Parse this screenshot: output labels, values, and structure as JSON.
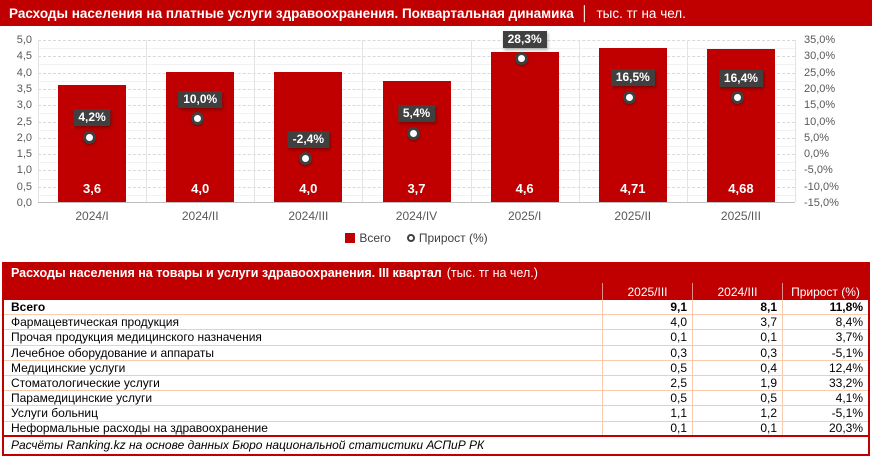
{
  "header": {
    "title_bold": "Расходы населения на платные услуги здравоохранения. Поквартальная динамика",
    "separator": "│",
    "unit": "тыс. тг на чел."
  },
  "chart_data": {
    "type": "bar",
    "categories": [
      "2024/I",
      "2024/II",
      "2024/III",
      "2024/IV",
      "2025/I",
      "2025/II",
      "2025/III"
    ],
    "series": [
      {
        "name": "Всего",
        "type": "bar",
        "axis": "left",
        "values": [
          3.6,
          4.0,
          4.0,
          3.7,
          4.6,
          4.71,
          4.68
        ],
        "labels": [
          "3,6",
          "4,0",
          "4,0",
          "3,7",
          "4,6",
          "4,71",
          "4,68"
        ]
      },
      {
        "name": "Прирост (%)",
        "type": "point",
        "axis": "right",
        "values": [
          4.2,
          10.0,
          -2.4,
          5.4,
          28.3,
          16.5,
          16.4
        ],
        "labels": [
          "4,2%",
          "10,0%",
          "-2,4%",
          "5,4%",
          "28,3%",
          "16,5%",
          "16,4%"
        ]
      }
    ],
    "left_axis": {
      "min": 0,
      "max": 5,
      "ticks": [
        "5,0",
        "4,5",
        "4,0",
        "3,5",
        "3,0",
        "2,5",
        "2,0",
        "1,5",
        "1,0",
        "0,5",
        "0,0"
      ]
    },
    "right_axis": {
      "min": -15,
      "max": 35,
      "ticks": [
        "35,0%",
        "30,0%",
        "25,0%",
        "20,0%",
        "15,0%",
        "10,0%",
        "5,0%",
        "0,0%",
        "-5,0%",
        "-10,0%",
        "-15,0%"
      ]
    },
    "legend": [
      {
        "label": "Всего",
        "marker": "square"
      },
      {
        "label": "Прирост (%)",
        "marker": "ring"
      }
    ],
    "grid": "dashed-horizontal",
    "legend_position": "bottom-center"
  },
  "table": {
    "title_bold": "Расходы населения на товары и услуги здравоохранения. III квартал",
    "title_normal": "(тыс. тг на чел.)",
    "columns": [
      "",
      "2025/III",
      "2024/III",
      "Прирост (%)"
    ],
    "rows": [
      {
        "label": "Всего",
        "values": [
          "9,1",
          "8,1",
          "11,8%"
        ],
        "bold": true
      },
      {
        "label": "Фармацевтическая продукция",
        "values": [
          "4,0",
          "3,7",
          "8,4%"
        ],
        "bold": false
      },
      {
        "label": "Прочая продукция медицинского назначения",
        "values": [
          "0,1",
          "0,1",
          "3,7%"
        ],
        "bold": false
      },
      {
        "label": "Лечебное оборудование и аппараты",
        "values": [
          "0,3",
          "0,3",
          "-5,1%"
        ],
        "bold": false
      },
      {
        "label": "Медицинские услуги",
        "values": [
          "0,5",
          "0,4",
          "12,4%"
        ],
        "bold": false
      },
      {
        "label": "Стоматологические услуги",
        "values": [
          "2,5",
          "1,9",
          "33,2%"
        ],
        "bold": false
      },
      {
        "label": "Парамедицинские услуги",
        "values": [
          "0,5",
          "0,5",
          "4,1%"
        ],
        "bold": false
      },
      {
        "label": "Услуги больниц",
        "values": [
          "1,1",
          "1,2",
          "-5,1%"
        ],
        "bold": false
      },
      {
        "label": "Неформальные расходы на здравоохранение",
        "values": [
          "0,1",
          "0,1",
          "20,3%"
        ],
        "bold": false
      }
    ],
    "footer": "Расчёты Ranking.kz на основе данных Бюро национальной статистики АСПиР РК"
  },
  "colors": {
    "accent_red": "#C00000",
    "label_box": "#404040",
    "axis_text": "#595959",
    "grid_major": "#D9D9D9",
    "table_border_light": "#F8CBAD"
  }
}
